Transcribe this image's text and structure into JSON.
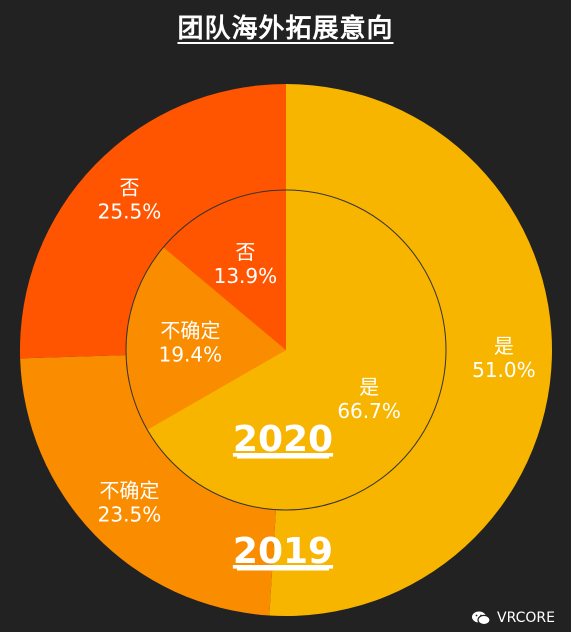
{
  "title": "团队海外拓展意向",
  "watermark": {
    "text": "VRCORE",
    "icon": "wechat-icon"
  },
  "colors": {
    "background": "#222222",
    "yes": "#f7b500",
    "uncertain": "#fa8c00",
    "no": "#ff5500"
  },
  "chart_data": {
    "type": "pie",
    "title": "团队海外拓展意向",
    "rings": [
      {
        "name": "2019",
        "label": "2019",
        "position": "outer",
        "slices": [
          {
            "label": "是",
            "value": 51.0,
            "display": "51.0%",
            "color": "#f7b500"
          },
          {
            "label": "不确定",
            "value": 23.5,
            "display": "23.5%",
            "color": "#fa8c00"
          },
          {
            "label": "否",
            "value": 25.5,
            "display": "25.5%",
            "color": "#ff5500"
          }
        ]
      },
      {
        "name": "2020",
        "label": "2020",
        "position": "inner",
        "slices": [
          {
            "label": "是",
            "value": 66.7,
            "display": "66.7%",
            "color": "#f7b500"
          },
          {
            "label": "不确定",
            "value": 19.4,
            "display": "19.4%",
            "color": "#fa8c00"
          },
          {
            "label": "否",
            "value": 13.9,
            "display": "13.9%",
            "color": "#ff5500"
          }
        ]
      }
    ]
  }
}
